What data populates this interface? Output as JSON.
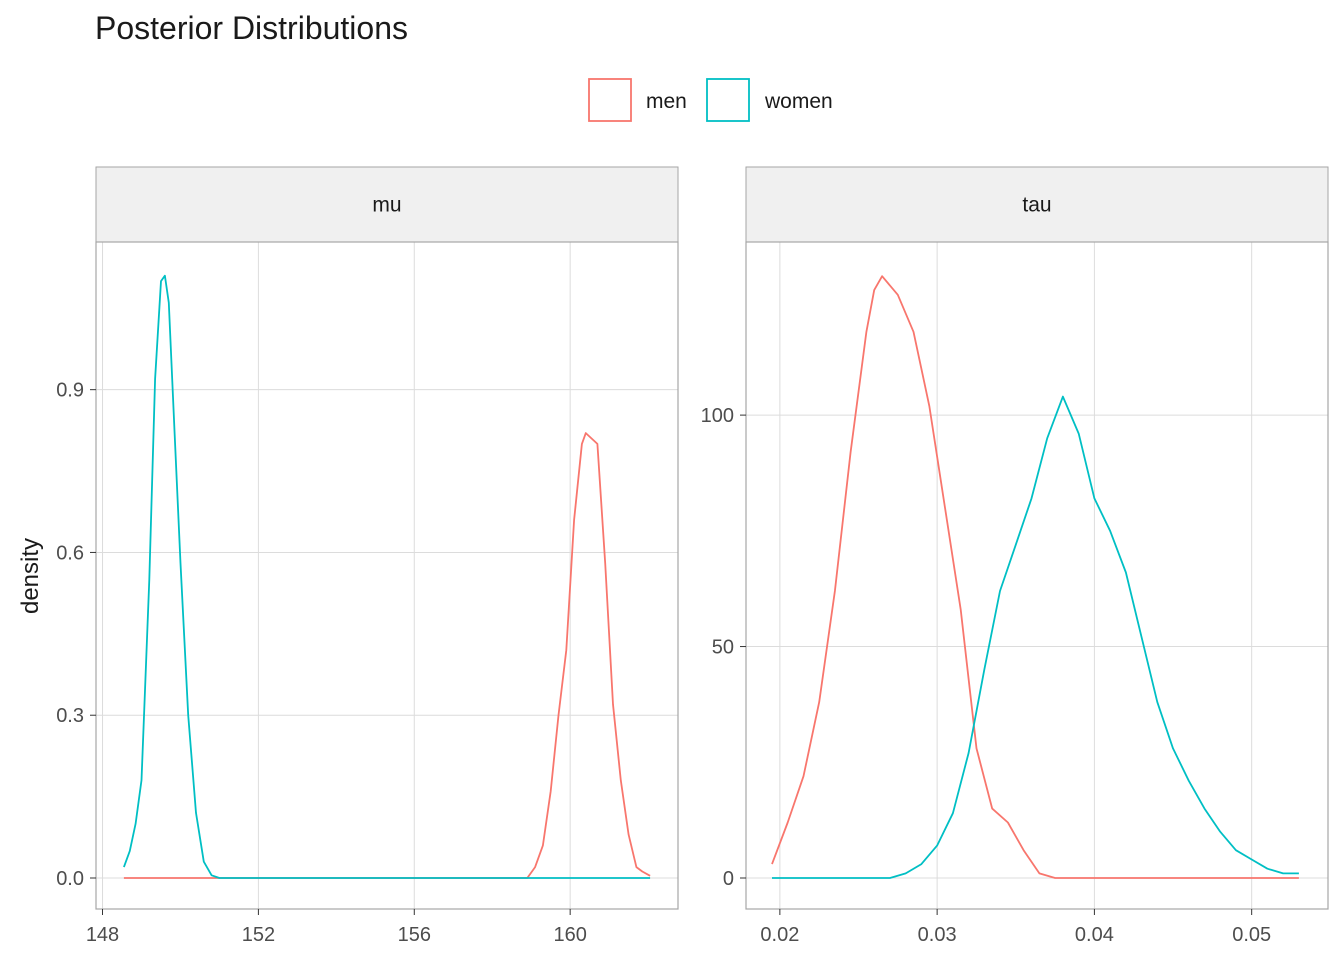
{
  "title": "Posterior Distributions",
  "colors": {
    "men": "#F8766D",
    "women": "#00BFC4",
    "grid": "#dcdcdc",
    "strip": "#f0f0f0",
    "panel_border": "#a6a6a6"
  },
  "legend": {
    "entries": [
      "men",
      "women"
    ],
    "position": "top"
  },
  "chart_data": {
    "type": "line",
    "subtype": "density",
    "ylabel": "density",
    "xlabel": "",
    "grid": true,
    "series_names": [
      "men",
      "women"
    ],
    "panels": [
      {
        "strip": "mu",
        "xlim": [
          148.5,
          162.1
        ],
        "ylim": [
          0,
          1.115
        ],
        "xticks": [
          148,
          152,
          156,
          160
        ],
        "xtick_labels": [
          "148",
          "152",
          "156",
          "160"
        ],
        "yticks": [
          0.0,
          0.3,
          0.6,
          0.9
        ],
        "ytick_labels": [
          "0.0",
          "0.3",
          "0.6",
          "0.9"
        ],
        "series": [
          {
            "name": "men",
            "x": [
              148.55,
              158.9,
              159.1,
              159.3,
              159.5,
              159.7,
              159.9,
              160.1,
              160.3,
              160.4,
              160.55,
              160.7,
              160.9,
              161.1,
              161.3,
              161.5,
              161.7,
              161.85,
              162.05
            ],
            "y": [
              0.0,
              0.0,
              0.02,
              0.06,
              0.16,
              0.3,
              0.42,
              0.66,
              0.8,
              0.82,
              0.81,
              0.8,
              0.58,
              0.32,
              0.18,
              0.08,
              0.02,
              0.012,
              0.004
            ]
          },
          {
            "name": "women",
            "x": [
              148.55,
              148.7,
              148.85,
              149.0,
              149.2,
              149.35,
              149.5,
              149.6,
              149.7,
              149.85,
              150.0,
              150.2,
              150.4,
              150.6,
              150.8,
              151.0,
              152,
              156,
              160,
              162.05
            ],
            "y": [
              0.02,
              0.05,
              0.1,
              0.18,
              0.55,
              0.92,
              1.1,
              1.11,
              1.06,
              0.82,
              0.58,
              0.3,
              0.12,
              0.03,
              0.005,
              0.0,
              0.0,
              0.0,
              0.0,
              0.0
            ]
          }
        ]
      },
      {
        "strip": "tau",
        "xlim": [
          0.0195,
          0.0532
        ],
        "ylim": [
          0,
          130.7
        ],
        "xticks": [
          0.02,
          0.03,
          0.04,
          0.05
        ],
        "xtick_labels": [
          "0.02",
          "0.03",
          "0.04",
          "0.05"
        ],
        "yticks": [
          0,
          50,
          100
        ],
        "ytick_labels": [
          "0",
          "50",
          "100"
        ],
        "series": [
          {
            "name": "men",
            "x": [
              0.0195,
              0.0205,
              0.0215,
              0.0225,
              0.0235,
              0.0245,
              0.0255,
              0.026,
              0.0265,
              0.0275,
              0.0285,
              0.0295,
              0.0305,
              0.0315,
              0.0325,
              0.0335,
              0.0345,
              0.0355,
              0.0365,
              0.0375,
              0.039,
              0.045,
              0.053
            ],
            "y": [
              3,
              12,
              22,
              38,
              62,
              92,
              118,
              127,
              130,
              126,
              118,
              102,
              80,
              58,
              28,
              15,
              12,
              6,
              1,
              0,
              0,
              0,
              0
            ]
          },
          {
            "name": "women",
            "x": [
              0.0195,
              0.027,
              0.028,
              0.029,
              0.03,
              0.031,
              0.032,
              0.033,
              0.034,
              0.035,
              0.036,
              0.037,
              0.038,
              0.039,
              0.04,
              0.041,
              0.042,
              0.043,
              0.044,
              0.045,
              0.046,
              0.047,
              0.048,
              0.049,
              0.05,
              0.051,
              0.052,
              0.053
            ],
            "y": [
              0,
              0,
              1,
              3,
              7,
              14,
              27,
              45,
              62,
              72,
              82,
              95,
              104,
              96,
              82,
              75,
              66,
              52,
              38,
              28,
              21,
              15,
              10,
              6,
              4,
              2,
              1,
              1
            ]
          }
        ]
      }
    ]
  }
}
